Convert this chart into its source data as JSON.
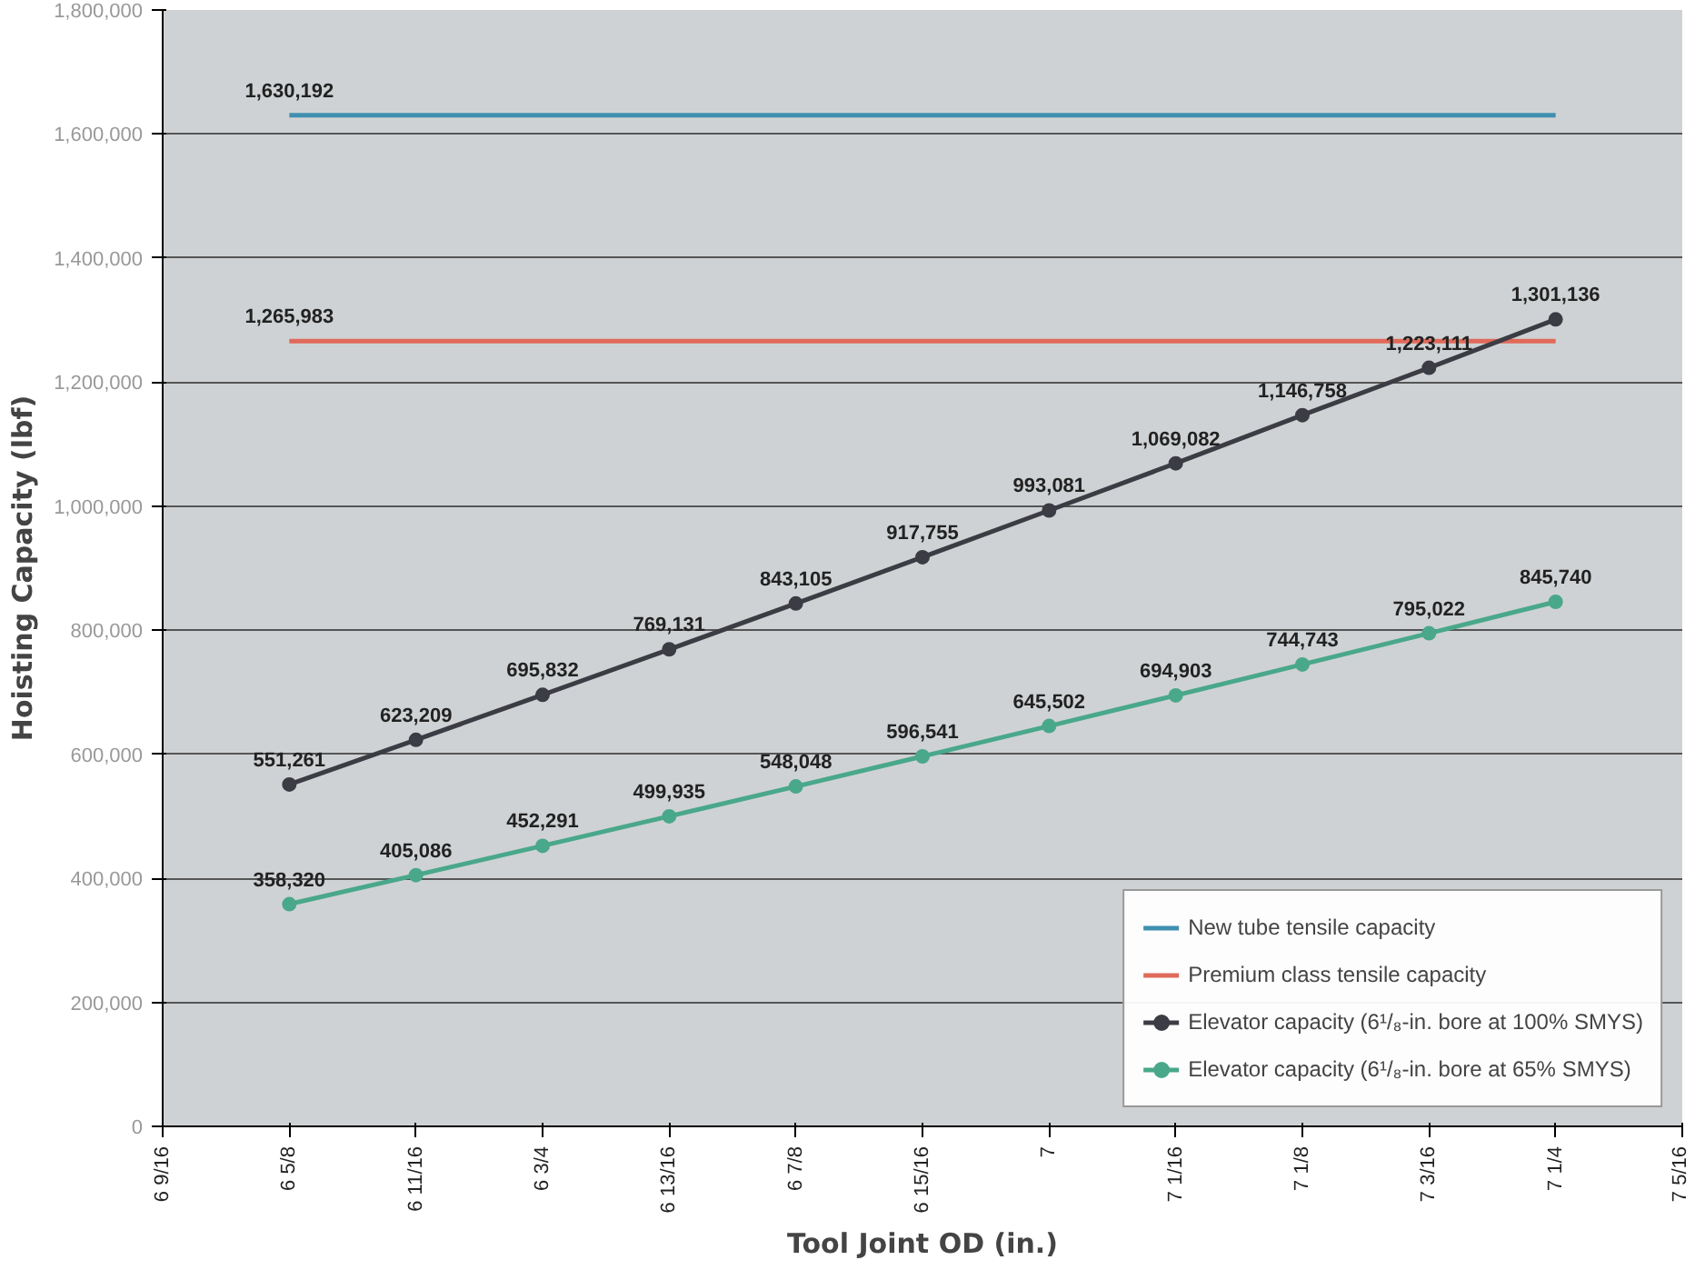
{
  "chart_data": {
    "type": "line",
    "xlabel": "Tool Joint OD (in.)",
    "ylabel": "Hoisting Capacity (lbf)",
    "categories": [
      "6 9/16",
      "6 5/8",
      "6 11/16",
      "6 3/4",
      "6 13/16",
      "6 7/8",
      "6 15/16",
      "7",
      "7 1/16",
      "7 1/8",
      "7 3/16",
      "7 1/4",
      "7 5/16"
    ],
    "ylim": [
      0,
      1800000
    ],
    "yticks": [
      {
        "value": 0,
        "label": "0"
      },
      {
        "value": 200000,
        "label": "200,000"
      },
      {
        "value": 400000,
        "label": "400,000"
      },
      {
        "value": 600000,
        "label": "600,000"
      },
      {
        "value": 800000,
        "label": "800,000"
      },
      {
        "value": 1000000,
        "label": "1,000,000"
      },
      {
        "value": 1200000,
        "label": "1,200,000"
      },
      {
        "value": 1400000,
        "label": "1,400,000"
      },
      {
        "value": 1600000,
        "label": "1,600,000"
      },
      {
        "value": 1800000,
        "label": "1,800,000"
      }
    ],
    "grid": "y",
    "legend": "bottom right",
    "series": [
      {
        "name": "New tube tensile capacity",
        "color": "#3f8fb0",
        "marker": "none",
        "values": [
          null,
          1630192,
          1630192,
          1630192,
          1630192,
          1630192,
          1630192,
          1630192,
          1630192,
          1630192,
          1630192,
          1630192,
          null
        ],
        "value_labels": [
          null,
          "1,630,192",
          null,
          null,
          null,
          null,
          null,
          null,
          null,
          null,
          null,
          null,
          null
        ]
      },
      {
        "name": "Premium class tensile capacity",
        "color": "#e06a5a",
        "marker": "none",
        "values": [
          null,
          1265983,
          1265983,
          1265983,
          1265983,
          1265983,
          1265983,
          1265983,
          1265983,
          1265983,
          1265983,
          1265983,
          null
        ],
        "value_labels": [
          null,
          "1,265,983",
          null,
          null,
          null,
          null,
          null,
          null,
          null,
          null,
          null,
          null,
          null
        ]
      },
      {
        "name": "Elevator capacity (6¹/₈-in. bore at 100% SMYS)",
        "color": "#3c3c44",
        "marker": "circle",
        "values": [
          null,
          551261,
          623209,
          695832,
          769131,
          843105,
          917755,
          993081,
          1069082,
          1146758,
          1223111,
          1301136,
          null
        ],
        "value_labels": [
          null,
          "551,261",
          "623,209",
          "695,832",
          "769,131",
          "843,105",
          "917,755",
          "993,081",
          "1,069,082",
          "1,146,758",
          "1,223,111",
          "1,301,136",
          null
        ]
      },
      {
        "name": "Elevator capacity (6¹/₈-in. bore at 65% SMYS)",
        "color": "#4aa88a",
        "marker": "circle",
        "values": [
          null,
          358320,
          405086,
          452291,
          499935,
          548048,
          596541,
          645502,
          694903,
          744743,
          795022,
          845740,
          null
        ],
        "value_labels": [
          null,
          "358,320",
          "405,086",
          "452,291",
          "499,935",
          "548,048",
          "596,541",
          "645,502",
          "694,903",
          "744,743",
          "795,022",
          "845,740",
          null
        ]
      }
    ]
  }
}
